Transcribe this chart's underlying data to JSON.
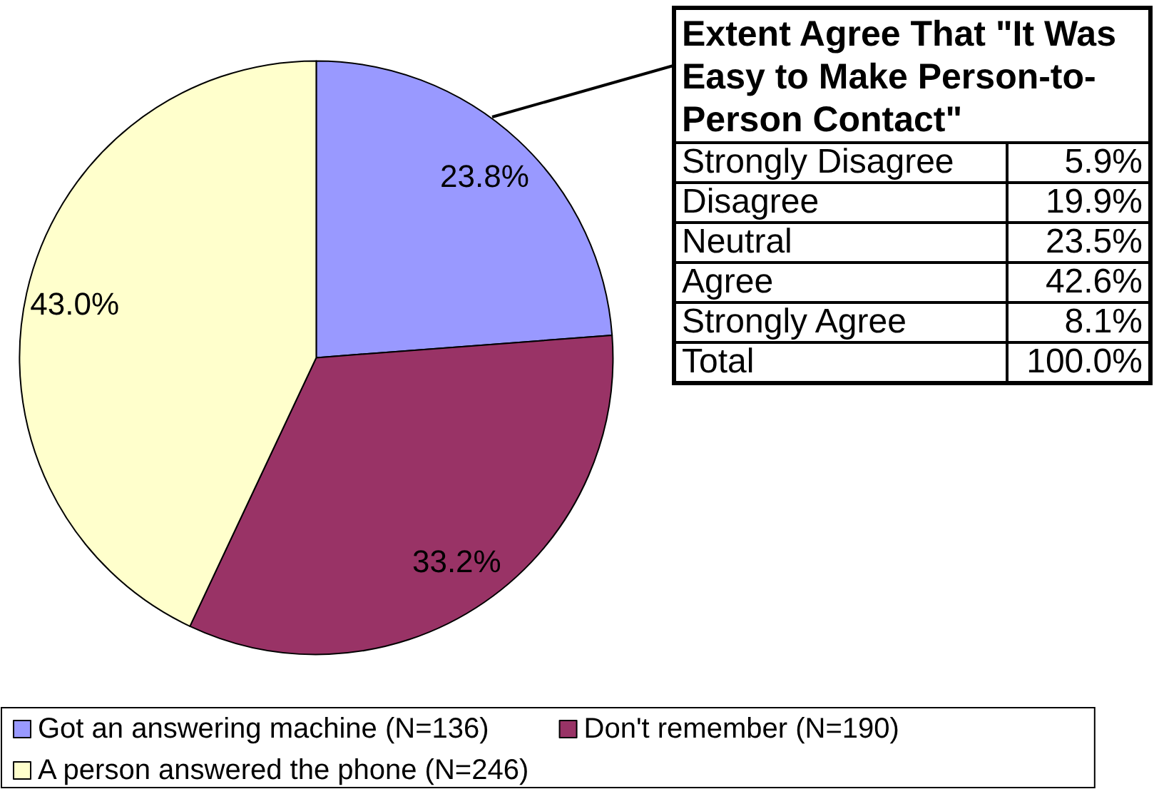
{
  "chart_data": [
    {
      "type": "pie",
      "categories": [
        "Got an answering machine (N=136)",
        "Don't remember (N=190)",
        "A person answered the phone (N=246)"
      ],
      "values": [
        23.8,
        33.2,
        43.0
      ],
      "colors": [
        "#9999ff",
        "#993366",
        "#ffffcc"
      ],
      "value_labels": [
        "23.8%",
        "33.2%",
        "43.0%"
      ],
      "legend": "bottom"
    },
    {
      "type": "other",
      "title": "Extent Agree That \"It Was Easy to Make Person-to-Person Contact\"",
      "categories": [
        "Strongly Disagree",
        "Disagree",
        "Neutral",
        "Agree",
        "Strongly Agree",
        "Total"
      ],
      "value_labels": [
        "5.9%",
        "19.9%",
        "23.5%",
        "42.6%",
        "8.1%",
        "100.0%"
      ]
    }
  ]
}
